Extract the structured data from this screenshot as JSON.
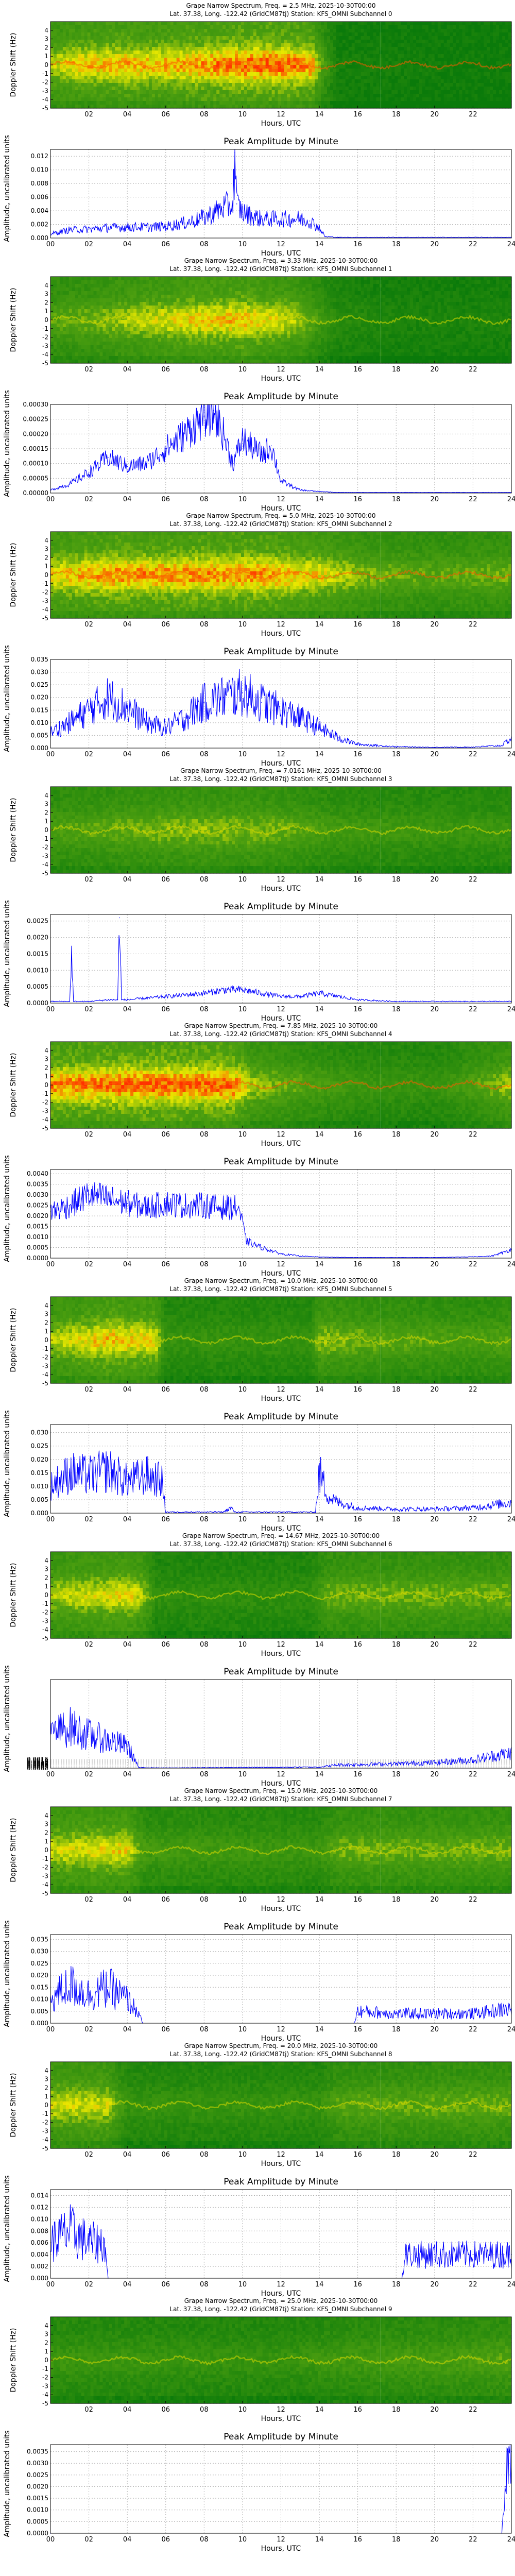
{
  "figure": {
    "spectrogram_title_prefix": "Grape Narrow Spectrum, Freq. = ",
    "spectrogram_title_suffix": ", 2025-10-30T00:00",
    "location_prefix": "Lat.  37.38, Long. -122.42 (Grid",
    "location_suffix": ") Station: KFS_OMNI Subchannel ",
    "grid_square": "CM87tj",
    "spectrogram_ylabel": "Doppler Shift (Hz)",
    "amplitude_title": "Peak Amplitude by Minute",
    "amplitude_ylabel": "Amplitude, uncalibrated units",
    "xlabel": "Hours, UTC",
    "spectrogram_xticks": [
      "02",
      "04",
      "06",
      "08",
      "10",
      "12",
      "14",
      "16",
      "18",
      "20",
      "22"
    ],
    "amplitude_xticks": [
      "00",
      "02",
      "04",
      "06",
      "08",
      "10",
      "12",
      "14",
      "16",
      "18",
      "20",
      "22",
      "24"
    ],
    "doppler_ticks": [
      "4",
      "3",
      "2",
      "1",
      "0",
      "-1",
      "-2",
      "-3",
      "-4",
      "-5"
    ],
    "colors": {
      "series_line": "#0000ff",
      "grid": "#b0b0b0",
      "spectrum_low": "#0a7a0a",
      "spectrum_mid": "#e8e800",
      "spectrum_high": "#ff3000"
    }
  },
  "chart_data": [
    {
      "type": "heatmap",
      "subchannel": "0",
      "freq": "2.5 MHz",
      "xlabel": "Hours, UTC",
      "ylabel": "Doppler Shift (Hz)",
      "xlim": [
        0,
        24
      ],
      "ylim": [
        -5,
        5
      ],
      "trace_doppler": 0,
      "activity": [
        [
          0,
          0.7
        ],
        [
          1,
          0.8
        ],
        [
          3,
          0.85
        ],
        [
          6,
          0.85
        ],
        [
          8,
          0.9
        ],
        [
          10,
          0.95
        ],
        [
          12,
          0.95
        ],
        [
          13.6,
          0.9
        ],
        [
          14.2,
          0.5
        ],
        [
          15,
          0.1
        ],
        [
          24,
          0.05
        ]
      ]
    },
    {
      "type": "line",
      "subchannel": "0",
      "title": "Peak Amplitude by Minute",
      "xlabel": "Hours, UTC",
      "ylabel": "Amplitude, uncalibrated units",
      "xlim": [
        0,
        24
      ],
      "ylim": [
        0,
        0.013
      ],
      "yticks": [
        "0.000",
        "0.002",
        "0.004",
        "0.006",
        "0.008",
        "0.010",
        "0.012"
      ],
      "noise": 0.45,
      "x": [
        0,
        1,
        2,
        3,
        4,
        5,
        6,
        7,
        8,
        9,
        9.5,
        9.6,
        9.7,
        10,
        10.5,
        11,
        12,
        13,
        13.5,
        14,
        14.3,
        15,
        24
      ],
      "y": [
        0.0006,
        0.0012,
        0.0013,
        0.0015,
        0.0016,
        0.0016,
        0.0017,
        0.0022,
        0.003,
        0.0045,
        0.005,
        0.0125,
        0.005,
        0.0038,
        0.0032,
        0.0028,
        0.0028,
        0.0028,
        0.0025,
        0.0015,
        0.0002,
        0.0001,
        0.0001
      ]
    },
    {
      "type": "heatmap",
      "subchannel": "1",
      "freq": "3.33 MHz",
      "xlabel": "Hours, UTC",
      "ylabel": "Doppler Shift (Hz)",
      "xlim": [
        0,
        24
      ],
      "ylim": [
        -5,
        5
      ],
      "trace_doppler": 0,
      "activity": [
        [
          0,
          0.55
        ],
        [
          2,
          0.6
        ],
        [
          4,
          0.7
        ],
        [
          7,
          0.8
        ],
        [
          10,
          0.85
        ],
        [
          13,
          0.7
        ],
        [
          14,
          0.45
        ],
        [
          15,
          0.25
        ],
        [
          18,
          0.15
        ],
        [
          24,
          0.15
        ]
      ]
    },
    {
      "type": "line",
      "subchannel": "1",
      "title": "Peak Amplitude by Minute",
      "xlabel": "Hours, UTC",
      "ylabel": "Amplitude, uncalibrated units",
      "xlim": [
        0,
        24
      ],
      "ylim": [
        0,
        0.0003
      ],
      "yticks": [
        "0.00000",
        "0.00005",
        "0.00010",
        "0.00015",
        "0.00020",
        "0.00025",
        "0.00030"
      ],
      "noise": 0.3,
      "x": [
        0,
        1,
        2,
        3,
        4,
        5,
        6,
        7,
        8,
        8.5,
        9,
        9.5,
        10,
        11,
        11.5,
        12,
        13,
        14,
        15,
        24
      ],
      "y": [
        1e-05,
        3e-05,
        7e-05,
        0.00012,
        9e-05,
        0.0001,
        0.00015,
        0.0002,
        0.00026,
        0.00028,
        0.0002,
        0.0001,
        0.00018,
        0.00013,
        0.00016,
        4e-05,
        1e-05,
        5e-06,
        2e-06,
        2e-06
      ]
    },
    {
      "type": "heatmap",
      "subchannel": "2",
      "freq": "5.0 MHz",
      "xlabel": "Hours, UTC",
      "ylabel": "Doppler Shift (Hz)",
      "xlim": [
        0,
        24
      ],
      "ylim": [
        -5,
        5
      ],
      "trace_doppler": 0,
      "activity": [
        [
          0,
          0.8
        ],
        [
          3,
          0.9
        ],
        [
          8,
          0.9
        ],
        [
          11,
          0.9
        ],
        [
          14,
          0.8
        ],
        [
          17,
          0.6
        ],
        [
          20,
          0.55
        ],
        [
          24,
          0.6
        ]
      ]
    },
    {
      "type": "line",
      "subchannel": "2",
      "title": "Peak Amplitude by Minute",
      "xlabel": "Hours, UTC",
      "ylabel": "Amplitude, uncalibrated units",
      "xlim": [
        0,
        24
      ],
      "ylim": [
        0,
        0.035
      ],
      "yticks": [
        "0.000",
        "0.005",
        "0.010",
        "0.015",
        "0.020",
        "0.025",
        "0.030",
        "0.035"
      ],
      "noise": 0.45,
      "x": [
        0,
        1,
        2,
        3,
        4,
        5,
        6,
        7,
        8,
        9,
        10,
        11,
        12,
        13,
        14,
        15,
        16,
        18,
        20,
        22,
        23.5,
        24
      ],
      "y": [
        0.006,
        0.01,
        0.015,
        0.02,
        0.016,
        0.01,
        0.008,
        0.012,
        0.018,
        0.02,
        0.022,
        0.018,
        0.015,
        0.012,
        0.008,
        0.004,
        0.0015,
        0.0005,
        0.0003,
        0.0004,
        0.001,
        0.004
      ]
    },
    {
      "type": "heatmap",
      "subchannel": "3",
      "freq": "7.0161 MHz",
      "xlabel": "Hours, UTC",
      "ylabel": "Doppler Shift (Hz)",
      "xlim": [
        0,
        24
      ],
      "ylim": [
        -5,
        5
      ],
      "trace_doppler": 0,
      "activity": [
        [
          0,
          0.5
        ],
        [
          4,
          0.6
        ],
        [
          8,
          0.65
        ],
        [
          12,
          0.6
        ],
        [
          15,
          0.45
        ],
        [
          20,
          0.4
        ],
        [
          24,
          0.4
        ]
      ]
    },
    {
      "type": "line",
      "subchannel": "3",
      "title": "Peak Amplitude by Minute",
      "xlabel": "Hours, UTC",
      "ylabel": "Amplitude, uncalibrated units",
      "xlim": [
        0,
        24
      ],
      "ylim": [
        0,
        0.0027
      ],
      "yticks": [
        "0.0000",
        "0.0005",
        "0.0010",
        "0.0015",
        "0.0020",
        "0.0025"
      ],
      "noise": 0.3,
      "x": [
        0,
        1,
        1.1,
        1.2,
        2,
        3,
        3.5,
        3.6,
        3.7,
        4,
        6,
        8,
        9,
        10,
        11,
        12,
        13,
        14,
        16,
        18,
        24
      ],
      "y": [
        5e-05,
        5e-05,
        0.0015,
        5e-05,
        5e-05,
        0.0001,
        0.0001,
        0.0026,
        0.0001,
        0.0001,
        0.0002,
        0.0003,
        0.0004,
        0.0004,
        0.0003,
        0.0002,
        0.0002,
        0.0003,
        0.0001,
        5e-05,
        5e-05
      ]
    },
    {
      "type": "heatmap",
      "subchannel": "4",
      "freq": "7.85 MHz",
      "xlabel": "Hours, UTC",
      "ylabel": "Doppler Shift (Hz)",
      "xlim": [
        0,
        24
      ],
      "ylim": [
        -5,
        5
      ],
      "trace_doppler": 0,
      "activity": [
        [
          0,
          0.9
        ],
        [
          4,
          0.95
        ],
        [
          9.5,
          0.95
        ],
        [
          10.5,
          0.7
        ],
        [
          12,
          0.6
        ],
        [
          16,
          0.4
        ],
        [
          20,
          0.35
        ],
        [
          23,
          0.6
        ],
        [
          24,
          0.7
        ]
      ]
    },
    {
      "type": "line",
      "subchannel": "4",
      "title": "Peak Amplitude by Minute",
      "xlabel": "Hours, UTC",
      "ylabel": "Amplitude, uncalibrated units",
      "xlim": [
        0,
        24
      ],
      "ylim": [
        0,
        0.0042
      ],
      "yticks": [
        "0.0000",
        "0.0005",
        "0.0010",
        "0.0015",
        "0.0020",
        "0.0025",
        "0.0030",
        "0.0035",
        "0.0040"
      ],
      "noise": 0.25,
      "x": [
        0,
        1,
        2,
        3,
        4,
        5,
        6,
        7,
        8,
        9,
        9.8,
        10.2,
        11,
        12,
        13,
        14,
        16,
        20,
        22,
        23,
        24
      ],
      "y": [
        0.0022,
        0.0025,
        0.003,
        0.0028,
        0.0026,
        0.0024,
        0.0026,
        0.0025,
        0.0025,
        0.0024,
        0.0024,
        0.0008,
        0.0005,
        0.0002,
        0.0001,
        5e-05,
        3e-05,
        3e-05,
        6e-05,
        0.0001,
        0.0004
      ]
    },
    {
      "type": "heatmap",
      "subchannel": "5",
      "freq": "10.0 MHz",
      "xlabel": "Hours, UTC",
      "ylabel": "Doppler Shift (Hz)",
      "xlim": [
        0,
        24
      ],
      "ylim": [
        -5,
        5
      ],
      "trace_doppler": 0,
      "activity": [
        [
          0,
          0.7
        ],
        [
          3,
          0.85
        ],
        [
          5.5,
          0.8
        ],
        [
          6,
          0.35
        ],
        [
          10,
          0.35
        ],
        [
          13.5,
          0.35
        ],
        [
          14,
          0.65
        ],
        [
          18,
          0.55
        ],
        [
          22,
          0.5
        ],
        [
          24,
          0.55
        ]
      ]
    },
    {
      "type": "line",
      "subchannel": "5",
      "title": "Peak Amplitude by Minute",
      "xlabel": "Hours, UTC",
      "ylabel": "Amplitude, uncalibrated units",
      "xlim": [
        0,
        24
      ],
      "ylim": [
        0,
        0.033
      ],
      "yticks": [
        "0.000",
        "0.005",
        "0.010",
        "0.015",
        "0.020",
        "0.025",
        "0.030"
      ],
      "noise": 0.55,
      "x": [
        0,
        1,
        2,
        3,
        4,
        5,
        5.8,
        6,
        9,
        9.4,
        9.6,
        10,
        13.8,
        14,
        14.5,
        15,
        16,
        18,
        20,
        22,
        24
      ],
      "y": [
        0.01,
        0.015,
        0.014,
        0.016,
        0.012,
        0.014,
        0.012,
        0.0004,
        0.0004,
        0.002,
        0.0004,
        0.0004,
        0.0004,
        0.015,
        0.006,
        0.004,
        0.002,
        0.0015,
        0.0015,
        0.002,
        0.004
      ]
    },
    {
      "type": "heatmap",
      "subchannel": "6",
      "freq": "14.67 MHz",
      "xlabel": "Hours, UTC",
      "ylabel": "Doppler Shift (Hz)",
      "xlim": [
        0,
        24
      ],
      "ylim": [
        -5,
        5
      ],
      "trace_doppler": 0,
      "activity": [
        [
          0,
          0.7
        ],
        [
          4,
          0.8
        ],
        [
          4.8,
          0.7
        ],
        [
          5.5,
          0.3
        ],
        [
          13.5,
          0.3
        ],
        [
          14.5,
          0.6
        ],
        [
          18,
          0.6
        ],
        [
          22,
          0.6
        ],
        [
          24,
          0.6
        ]
      ]
    },
    {
      "type": "line",
      "subchannel": "6",
      "title": "Peak Amplitude by Minute",
      "xlabel": "Hours, UTC",
      "ylabel": "Amplitude, uncalibrated units",
      "xlim": [
        0,
        24
      ],
      "ylim": [
        0,
        0.016
      ],
      "yticks": [
        "0.0000",
        "0.0002",
        "0.0004",
        "0.0006",
        "0.0008",
        "0.0010",
        "0.0012",
        "0.0014",
        "0.0016"
      ],
      "noise": 0.5,
      "x": [
        0,
        1,
        2,
        3,
        4,
        4.4,
        4.6,
        6,
        14,
        15,
        18,
        20,
        22,
        23,
        24
      ],
      "y": [
        0.006,
        0.0075,
        0.006,
        0.005,
        0.004,
        0.0015,
        0.0001,
        5e-05,
        0.0002,
        0.0006,
        0.0008,
        0.001,
        0.0015,
        0.0022,
        0.0028
      ]
    },
    {
      "type": "heatmap",
      "subchannel": "7",
      "freq": "15.0 MHz",
      "xlabel": "Hours, UTC",
      "ylabel": "Doppler Shift (Hz)",
      "xlim": [
        0,
        24
      ],
      "ylim": [
        -5,
        5
      ],
      "trace_doppler": 0,
      "activity": [
        [
          0,
          0.75
        ],
        [
          4,
          0.8
        ],
        [
          5,
          0.45
        ],
        [
          14,
          0.4
        ],
        [
          15,
          0.6
        ],
        [
          20,
          0.6
        ],
        [
          24,
          0.6
        ]
      ]
    },
    {
      "type": "line",
      "subchannel": "7",
      "title": "Peak Amplitude by Minute",
      "xlabel": "Hours, UTC",
      "ylabel": "Amplitude, uncalibrated units",
      "xlim": [
        0,
        24
      ],
      "ylim": [
        0,
        0.037
      ],
      "yticks": [
        "0.000",
        "0.005",
        "0.010",
        "0.015",
        "0.020",
        "0.025",
        "0.030",
        "0.035"
      ],
      "noise": 0.6,
      "x": [
        0,
        1,
        2,
        3,
        4,
        4.6,
        4.8,
        15.8,
        16,
        18,
        20,
        22,
        24
      ],
      "y": [
        0.01,
        0.016,
        0.012,
        0.015,
        0.01,
        0.004,
        0,
        0,
        0.005,
        0.004,
        0.004,
        0.004,
        0.006
      ]
    },
    {
      "type": "heatmap",
      "subchannel": "8",
      "freq": "20.0 MHz",
      "xlabel": "Hours, UTC",
      "ylabel": "Doppler Shift (Hz)",
      "xlim": [
        0,
        24
      ],
      "ylim": [
        -5,
        5
      ],
      "trace_doppler": 0,
      "activity": [
        [
          0,
          0.75
        ],
        [
          3,
          0.75
        ],
        [
          4,
          0.35
        ],
        [
          14,
          0.35
        ],
        [
          15,
          0.55
        ],
        [
          24,
          0.6
        ]
      ]
    },
    {
      "type": "line",
      "subchannel": "8",
      "title": "Peak Amplitude by Minute",
      "xlabel": "Hours, UTC",
      "ylabel": "Amplitude, uncalibrated units",
      "xlim": [
        0,
        24
      ],
      "ylim": [
        0,
        0.015
      ],
      "yticks": [
        "0.000",
        "0.002",
        "0.004",
        "0.006",
        "0.008",
        "0.010",
        "0.012",
        "0.014"
      ],
      "noise": 0.6,
      "x": [
        0,
        1,
        2,
        2.8,
        3,
        18.3,
        18.5,
        20,
        22,
        24
      ],
      "y": [
        0.006,
        0.008,
        0.006,
        0.006,
        0,
        0,
        0.004,
        0.004,
        0.004,
        0.004
      ]
    },
    {
      "type": "heatmap",
      "subchannel": "9",
      "freq": "25.0 MHz",
      "xlabel": "Hours, UTC",
      "ylabel": "Doppler Shift (Hz)",
      "xlim": [
        0,
        24
      ],
      "ylim": [
        -5,
        5
      ],
      "trace_doppler": 0,
      "activity": [
        [
          0,
          0.4
        ],
        [
          12,
          0.35
        ],
        [
          16,
          0.45
        ],
        [
          22,
          0.5
        ],
        [
          24,
          0.55
        ]
      ]
    },
    {
      "type": "line",
      "subchannel": "9",
      "title": "Peak Amplitude by Minute",
      "xlabel": "Hours, UTC",
      "ylabel": "Amplitude, uncalibrated units",
      "xlim": [
        0,
        24
      ],
      "ylim": [
        0,
        0.0038
      ],
      "yticks": [
        "0.0000",
        "0.0005",
        "0.0010",
        "0.0015",
        "0.0020",
        "0.0025",
        "0.0030",
        "0.0035"
      ],
      "noise": 0.4,
      "x": [
        0,
        23.5,
        23.7,
        23.85,
        24
      ],
      "y": [
        0,
        0,
        0.002,
        0.0035,
        0.0035
      ]
    }
  ]
}
